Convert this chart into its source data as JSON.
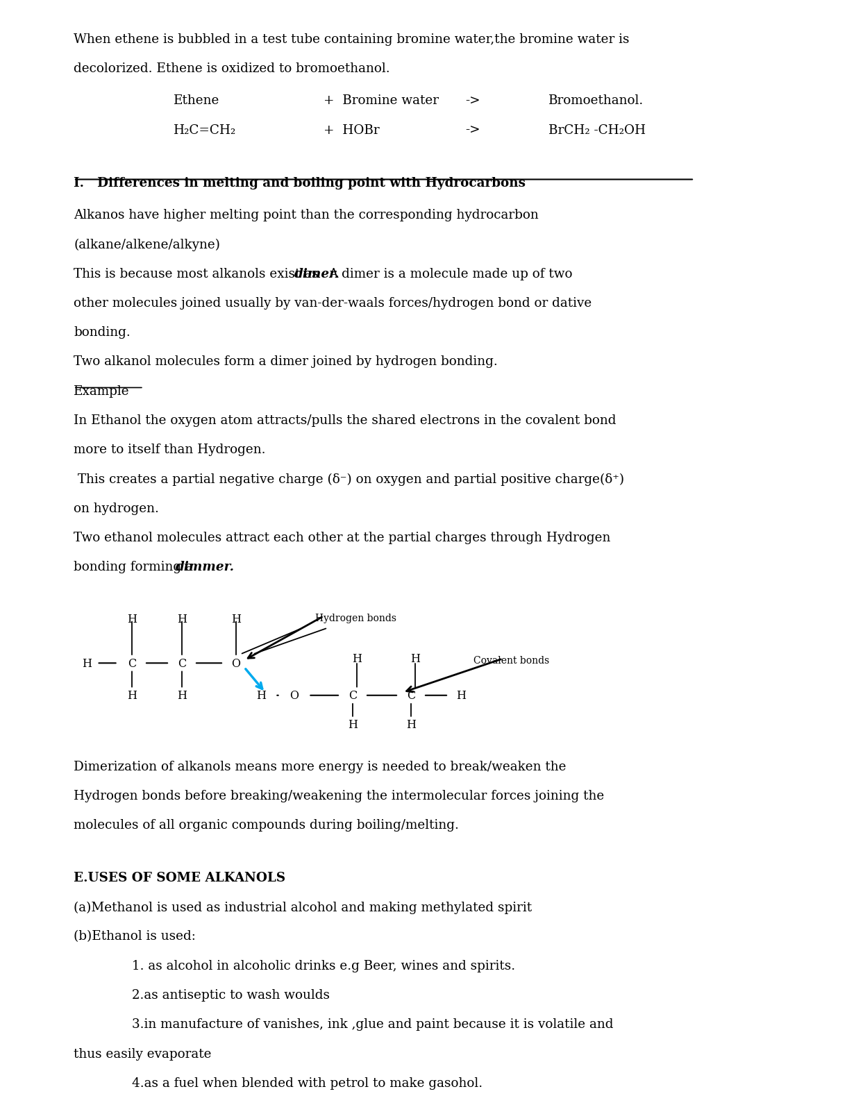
{
  "bg_color": "#ffffff",
  "text_color": "#000000",
  "figsize": [
    12.0,
    15.53
  ],
  "dpi": 100,
  "intro_text1": "When ethene is bubbled in a test tube containing bromine water,the bromine water is",
  "intro_text2": "decolorized. Ethene is oxidized to bromoethanol.",
  "eq1_col1": "Ethene",
  "eq1_col2": "+  Bromine water",
  "eq1_arrow": "->",
  "eq1_col3": "Bromoethanol.",
  "eq2_col1": "H₂C=CH₂",
  "eq2_col2": "+  HOBr",
  "eq2_arrow": "->",
  "eq2_col3": "BrCH₂ -CH₂OH",
  "heading_I": "I.   Differences in melting and boiling point with Hydrocarbons",
  "para1": "Alkanos have higher melting point than the corresponding hydrocarbon",
  "para1b": "(alkane/alkene/alkyne)",
  "para2_pre": "This is because most alkanols exist as ",
  "para2_bold": "dimer.",
  "para2_post": "A dimer is a molecule made up of two",
  "para3": "other molecules joined usually by van-der-waals forces/hydrogen bond or dative",
  "para4": "bonding.",
  "para5": "Two alkanol molecules form a dimer joined by hydrogen bonding.",
  "example_label": "Example",
  "para6": "In Ethanol the oxygen atom attracts/pulls the shared electrons in the covalent bond",
  "para7": "more to itself than Hydrogen.",
  "para8": " This creates a partial negative charge (δ⁻) on oxygen and partial positive charge(δ⁺)",
  "para9": "on hydrogen.",
  "para10": "Two ethanol molecules attract each other at the partial charges through Hydrogen",
  "para11_pre": "bonding forming a ",
  "para11_bold": "dimmer.",
  "dimerization_text1": "Dimerization of alkanols means more energy is needed to break/weaken the",
  "dimerization_text2": "Hydrogen bonds before breaking/weakening the intermolecular forces joining the",
  "dimerization_text3": "molecules of all organic compounds during boiling/melting.",
  "uses_heading": "E.USES OF SOME ALKANOLS",
  "uses_a": "(a)Methanol is used as industrial alcohol and making methylated spirit",
  "uses_b": "(b)Ethanol is used:",
  "uses_b1": "1. as alcohol in alcoholic drinks e.g Beer, wines and spirits.",
  "uses_b2": "2.as antiseptic to wash woulds",
  "uses_b3": "3.in manufacture of vanishes, ink ,glue and paint because it is volatile and",
  "uses_b3b": "thus easily evaporate",
  "uses_b4": "4.as a fuel when blended with petrol to make gasohol."
}
